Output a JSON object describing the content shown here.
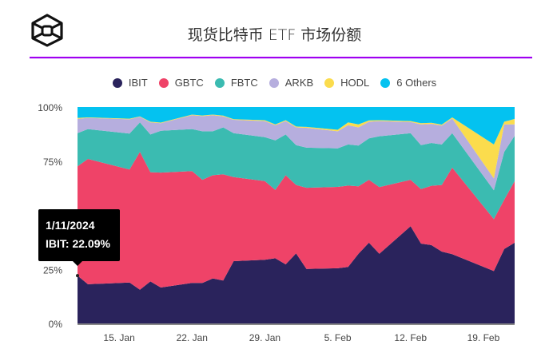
{
  "header": {
    "title": "现货比特币 ETF 市场份额",
    "logo": "cube-logo"
  },
  "colors": {
    "accent_rule": "#a000f0"
  },
  "tooltip": {
    "date": "1/11/2024",
    "label": "IBIT: 22.09%"
  },
  "chart_data": {
    "type": "area",
    "stacked": true,
    "title": "现货比特币 ETF 市场份额",
    "xlabel": "",
    "ylabel": "",
    "ylim": [
      0,
      100
    ],
    "y_ticks": [
      "0%",
      "25%",
      "50%",
      "75%",
      "100%"
    ],
    "y_tick_values": [
      0,
      25,
      50,
      75,
      100
    ],
    "x_ticks": [
      "15. Jan",
      "22. Jan",
      "29. Jan",
      "5. Feb",
      "12. Feb",
      "19. Feb"
    ],
    "x_tick_dates": [
      "2024-01-15",
      "2024-01-22",
      "2024-01-29",
      "2024-02-05",
      "2024-02-12",
      "2024-02-19"
    ],
    "legend_position": "top",
    "grid": false,
    "x": [
      "2024-01-11",
      "2024-01-12",
      "2024-01-16",
      "2024-01-17",
      "2024-01-18",
      "2024-01-19",
      "2024-01-22",
      "2024-01-23",
      "2024-01-24",
      "2024-01-25",
      "2024-01-26",
      "2024-01-29",
      "2024-01-30",
      "2024-01-31",
      "2024-02-01",
      "2024-02-02",
      "2024-02-05",
      "2024-02-06",
      "2024-02-07",
      "2024-02-08",
      "2024-02-09",
      "2024-02-12",
      "2024-02-13",
      "2024-02-14",
      "2024-02-15",
      "2024-02-16",
      "2024-02-20",
      "2024-02-21",
      "2024-02-22"
    ],
    "series": [
      {
        "name": "IBIT",
        "color": "#2a235c",
        "values": [
          22.09,
          18.1,
          18.9,
          15.6,
          19.4,
          16.6,
          18.7,
          18.7,
          20.8,
          19.8,
          28.8,
          29.4,
          30.1,
          27.3,
          32.4,
          25.2,
          25.5,
          26.1,
          32.2,
          37.3,
          32.2,
          44.9,
          36.9,
          36.2,
          33.2,
          32.0,
          24.2,
          34.4,
          37.3
        ]
      },
      {
        "name": "GBTC",
        "color": "#ef4368",
        "values": [
          50.5,
          57.9,
          52.2,
          63.7,
          50.5,
          53.1,
          51.7,
          47.7,
          47.7,
          49.1,
          38.8,
          36.4,
          31.6,
          41.2,
          31.6,
          37.5,
          37.6,
          37.6,
          31.2,
          29.1,
          30.8,
          21.5,
          25.2,
          27.4,
          30.8,
          40.0,
          24.0,
          22.8,
          28.5
        ]
      },
      {
        "name": "FBTC",
        "color": "#3bbbb1",
        "values": [
          15.3,
          13.8,
          16.6,
          13.6,
          17.4,
          19.3,
          19.4,
          22.4,
          20.3,
          21.7,
          20.3,
          20.3,
          22.9,
          18.8,
          18.4,
          18.5,
          17.8,
          19.0,
          18.8,
          19.1,
          23.5,
          21.5,
          20.3,
          19.8,
          18.7,
          15.9,
          13.3,
          22.1,
          20.9
        ]
      },
      {
        "name": "ARKB",
        "color": "#b6aede",
        "values": [
          6.6,
          5.2,
          6.6,
          2.6,
          5.6,
          3.5,
          6.4,
          7.0,
          7.4,
          5.1,
          6.2,
          7.4,
          7.0,
          6.2,
          8.2,
          9.2,
          7.9,
          8.9,
          8.4,
          7.7,
          7.0,
          5.2,
          9.6,
          8.8,
          8.7,
          6.8,
          5.5,
          12.7,
          5.3
        ]
      },
      {
        "name": "HODL",
        "color": "#fbdc4d",
        "values": [
          0.5,
          0.2,
          0.3,
          0.2,
          0.3,
          0.3,
          0.3,
          0.3,
          0.3,
          0.3,
          0.3,
          0.4,
          0.4,
          0.4,
          0.4,
          0.4,
          0.7,
          1.3,
          1.4,
          0.6,
          0.4,
          0.4,
          0.5,
          0.5,
          0.5,
          0.5,
          15.7,
          1.2,
          2.5
        ]
      },
      {
        "name": "6 Others",
        "color": "#04c2f0",
        "values": [
          5.0,
          4.8,
          5.4,
          4.3,
          6.8,
          7.2,
          3.5,
          3.9,
          3.5,
          4.0,
          5.6,
          6.1,
          8.0,
          6.1,
          9.0,
          9.2,
          10.5,
          7.1,
          8.0,
          6.2,
          6.1,
          6.5,
          7.5,
          7.3,
          8.1,
          4.8,
          17.3,
          6.8,
          5.5
        ]
      }
    ]
  }
}
